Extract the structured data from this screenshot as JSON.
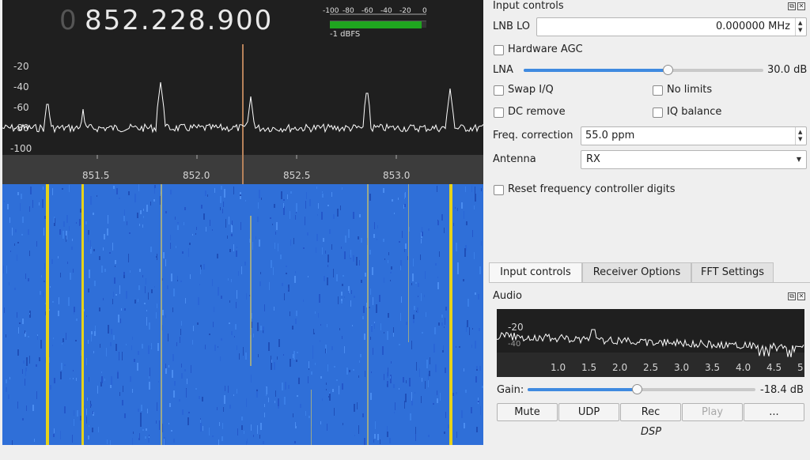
{
  "display": {
    "freq_zero": "0",
    "freq_main": "852.228.900",
    "meter_scale": [
      "-100",
      "-80",
      "-60",
      "-40",
      "-20",
      "0"
    ],
    "meter_level_fraction": 0.95,
    "meter_label": "-1 dBFS"
  },
  "spectrum": {
    "y_ticks": [
      "-20",
      "-40",
      "-60",
      "-80",
      "-100"
    ],
    "x_ticks": [
      "851.5",
      "852.0",
      "852.5",
      "853.0"
    ]
  },
  "input_controls": {
    "title": "Input controls",
    "lnb_lo_label": "LNB LO",
    "lnb_lo_value": "0.000000 MHz",
    "hw_agc_label": "Hardware AGC",
    "lna_label": "LNA",
    "lna_value": "30.0 dB",
    "lna_fraction": 0.6,
    "swap_iq_label": "Swap I/Q",
    "no_limits_label": "No limits",
    "dc_remove_label": "DC remove",
    "iq_balance_label": "IQ balance",
    "freq_corr_label": "Freq. correction",
    "freq_corr_value": "55.0 ppm",
    "antenna_label": "Antenna",
    "antenna_value": "RX",
    "reset_label": "Reset frequency controller digits"
  },
  "tabs": [
    "Input controls",
    "Receiver Options",
    "FFT Settings"
  ],
  "audio": {
    "title": "Audio",
    "y_tick": "-20",
    "y_tick2": "-40",
    "x_ticks": [
      "1.0",
      "1.5",
      "2.0",
      "2.5",
      "3.0",
      "3.5",
      "4.0",
      "4.5",
      "5"
    ],
    "gain_label": "Gain:",
    "gain_value": "-18.4 dB",
    "gain_fraction": 0.48,
    "buttons": [
      "Mute",
      "UDP",
      "Rec",
      "Play",
      "..."
    ],
    "dsp_label": "DSP"
  },
  "colors": {
    "waterfall_bg": "#2f6fd8",
    "signal": "#e6d21a",
    "slider": "#3f8ae0",
    "meter": "#1fa51f"
  }
}
